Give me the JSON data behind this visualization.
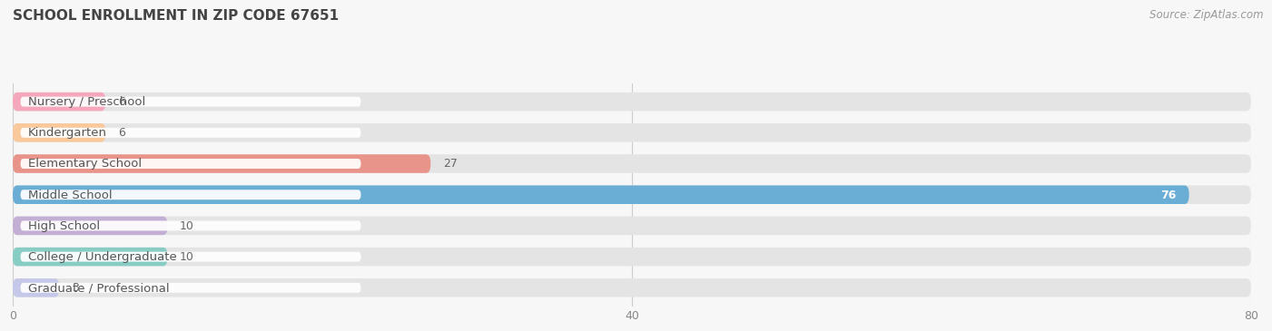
{
  "title": "SCHOOL ENROLLMENT IN ZIP CODE 67651",
  "source": "Source: ZipAtlas.com",
  "categories": [
    "Nursery / Preschool",
    "Kindergarten",
    "Elementary School",
    "Middle School",
    "High School",
    "College / Undergraduate",
    "Graduate / Professional"
  ],
  "values": [
    6,
    6,
    27,
    76,
    10,
    10,
    3
  ],
  "bar_colors": [
    "#f5a8bc",
    "#f9c89b",
    "#e8948a",
    "#6aaed6",
    "#c4afd4",
    "#88cdc4",
    "#c5c8e8"
  ],
  "xlim": [
    0,
    80
  ],
  "xticks": [
    0,
    40,
    80
  ],
  "background_color": "#f7f7f7",
  "bar_bg_color": "#e4e4e4",
  "title_fontsize": 11,
  "label_fontsize": 9.5,
  "value_fontsize": 9,
  "source_fontsize": 8.5
}
